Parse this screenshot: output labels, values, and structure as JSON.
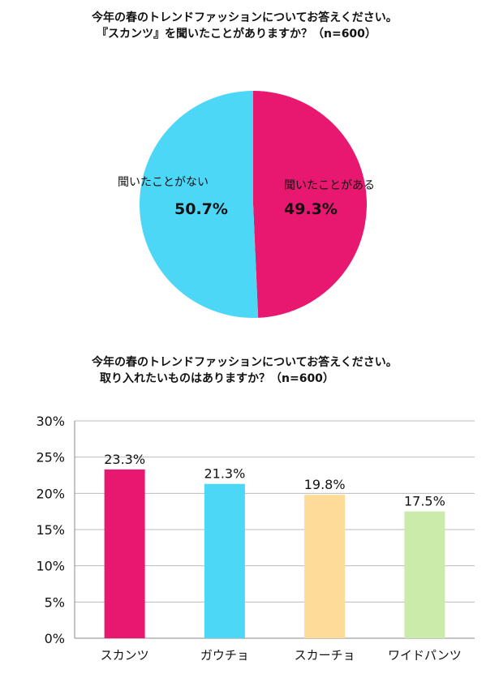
{
  "chart_data": [
    {
      "type": "pie",
      "title_line1": "今年の春のトレンドファッションについてお答えください。",
      "title_line2": "『スカンツ』を聞いたことがありますか？（n=600）",
      "slices": [
        {
          "label": "聞いたことがある",
          "value": 49.3,
          "value_label": "49.3%",
          "color": "#E8176F"
        },
        {
          "label": "聞いたことがない",
          "value": 50.7,
          "value_label": "50.7%",
          "color": "#4DD7F7"
        }
      ]
    },
    {
      "type": "bar",
      "title_line1": "今年の春のトレンドファッションについてお答えください。",
      "title_line2": "取り入れたいものはありますか？（n=600）",
      "categories": [
        "スカンツ",
        "ガウチョ",
        "スカーチョ",
        "ワイドパンツ"
      ],
      "values": [
        23.3,
        21.3,
        19.8,
        17.5
      ],
      "value_labels": [
        "23.3%",
        "21.3%",
        "19.8%",
        "17.5%"
      ],
      "colors": [
        "#E8176F",
        "#4DD7F7",
        "#FCDC98",
        "#CBEBAA"
      ],
      "ylim": [
        0,
        30
      ],
      "yticks": [
        0,
        5,
        10,
        15,
        20,
        25,
        30
      ],
      "ytick_labels": [
        "0%",
        "5%",
        "10%",
        "15%",
        "20%",
        "25%",
        "30%"
      ],
      "grid": true
    }
  ]
}
